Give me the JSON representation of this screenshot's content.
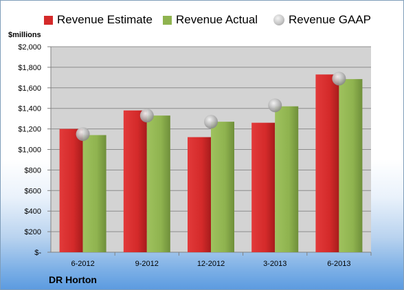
{
  "legend": {
    "estimate": "Revenue Estimate",
    "actual": "Revenue Actual",
    "gaap": "Revenue GAAP"
  },
  "colors": {
    "estimate": "#d42a2a",
    "actual": "#8fb34f",
    "gaap": "#b8b8b8",
    "plot_background": "#d3d3d3"
  },
  "unit_label": "$millions",
  "company": "DR Horton",
  "chart_data": {
    "type": "bar",
    "title": "",
    "xlabel": "",
    "ylabel": "$millions",
    "categories": [
      "6-2012",
      "9-2012",
      "12-2012",
      "3-2013",
      "6-2013"
    ],
    "series": [
      {
        "name": "Revenue Estimate",
        "values": [
          1200,
          1380,
          1120,
          1260,
          1730
        ]
      },
      {
        "name": "Revenue Actual",
        "values": [
          1140,
          1330,
          1270,
          1420,
          1685
        ]
      },
      {
        "name": "Revenue GAAP",
        "values": [
          1150,
          1330,
          1270,
          1430,
          1690
        ]
      }
    ],
    "ylim": [
      0,
      2000
    ],
    "yticks": [
      0,
      200,
      400,
      600,
      800,
      1000,
      1200,
      1400,
      1600,
      1800,
      2000
    ],
    "ytick_labels": [
      "$-",
      "$200",
      "$400",
      "$600",
      "$800",
      "$1,000",
      "$1,200",
      "$1,400",
      "$1,600",
      "$1,800",
      "$2,000"
    ],
    "grid": true,
    "legend_position": "top"
  }
}
